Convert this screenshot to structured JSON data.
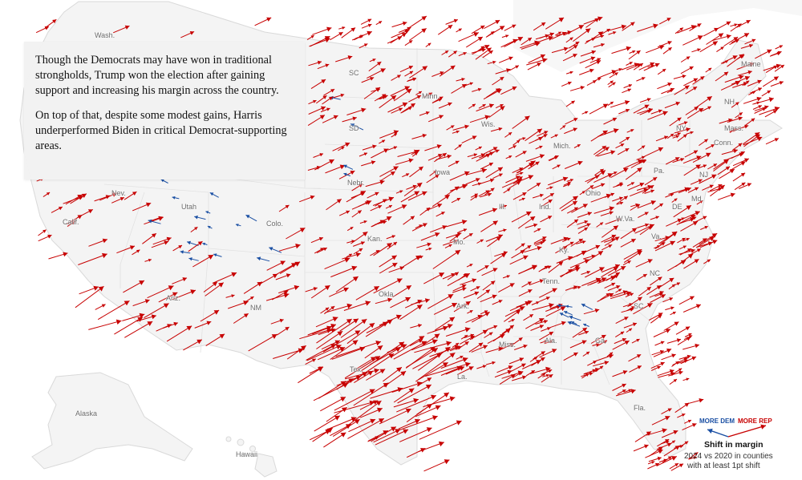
{
  "caption": {
    "paragraph1": "Though the Democrats may have won in traditional strongholds, Trump won the election after gaining support and increasing his margin across the country.",
    "paragraph2": "On top of that, despite some modest gains, Harris underperformed Biden in critical Democrat-supporting areas."
  },
  "legend": {
    "more_dem": "MORE DEM",
    "more_rep": "MORE REP",
    "title": "Shift in margin",
    "subtitle_line1": "2024 vs 2020 in counties",
    "subtitle_line2": "with at least 1pt shift",
    "colors": {
      "dem": "#1a4fa3",
      "rep": "#c70000"
    }
  },
  "state_labels": [
    {
      "id": "wash",
      "text": "Wash."
    },
    {
      "id": "maine",
      "text": "Maine"
    },
    {
      "id": "sc-north",
      "text": "SC"
    },
    {
      "id": "minn",
      "text": "Minn."
    },
    {
      "id": "nh",
      "text": "NH"
    },
    {
      "id": "wis",
      "text": "Wis."
    },
    {
      "id": "sd",
      "text": "SD"
    },
    {
      "id": "ny",
      "text": "NY"
    },
    {
      "id": "mass",
      "text": "Mass."
    },
    {
      "id": "mich",
      "text": "Mich."
    },
    {
      "id": "conn",
      "text": "Conn."
    },
    {
      "id": "nebr",
      "text": "Nebr."
    },
    {
      "id": "iowa",
      "text": "Iowa"
    },
    {
      "id": "pa",
      "text": "Pa."
    },
    {
      "id": "nj",
      "text": "NJ"
    },
    {
      "id": "nev",
      "text": "Nev."
    },
    {
      "id": "ohio",
      "text": "Ohio"
    },
    {
      "id": "ill",
      "text": "Ill."
    },
    {
      "id": "ind",
      "text": "Ind."
    },
    {
      "id": "md",
      "text": "Md."
    },
    {
      "id": "de",
      "text": "DE"
    },
    {
      "id": "utah",
      "text": "Utah"
    },
    {
      "id": "wva",
      "text": "W.Va."
    },
    {
      "id": "colo",
      "text": "Colo."
    },
    {
      "id": "calif",
      "text": "Calif."
    },
    {
      "id": "va",
      "text": "Va."
    },
    {
      "id": "kan",
      "text": "Kan."
    },
    {
      "id": "mo",
      "text": "Mo."
    },
    {
      "id": "ky",
      "text": "Ky."
    },
    {
      "id": "nc",
      "text": "NC"
    },
    {
      "id": "tenn",
      "text": "Tenn."
    },
    {
      "id": "okla",
      "text": "Okla."
    },
    {
      "id": "ariz",
      "text": "Ariz."
    },
    {
      "id": "nm",
      "text": "NM"
    },
    {
      "id": "ark",
      "text": "Ark."
    },
    {
      "id": "sc",
      "text": "SC"
    },
    {
      "id": "miss",
      "text": "Miss."
    },
    {
      "id": "ala",
      "text": "Ala."
    },
    {
      "id": "ga",
      "text": "Ga."
    },
    {
      "id": "tex",
      "text": "Tex."
    },
    {
      "id": "la",
      "text": "La."
    },
    {
      "id": "fla",
      "text": "Fla."
    },
    {
      "id": "alaska",
      "text": "Alaska"
    },
    {
      "id": "hawaii",
      "text": "Hawaii"
    }
  ]
}
